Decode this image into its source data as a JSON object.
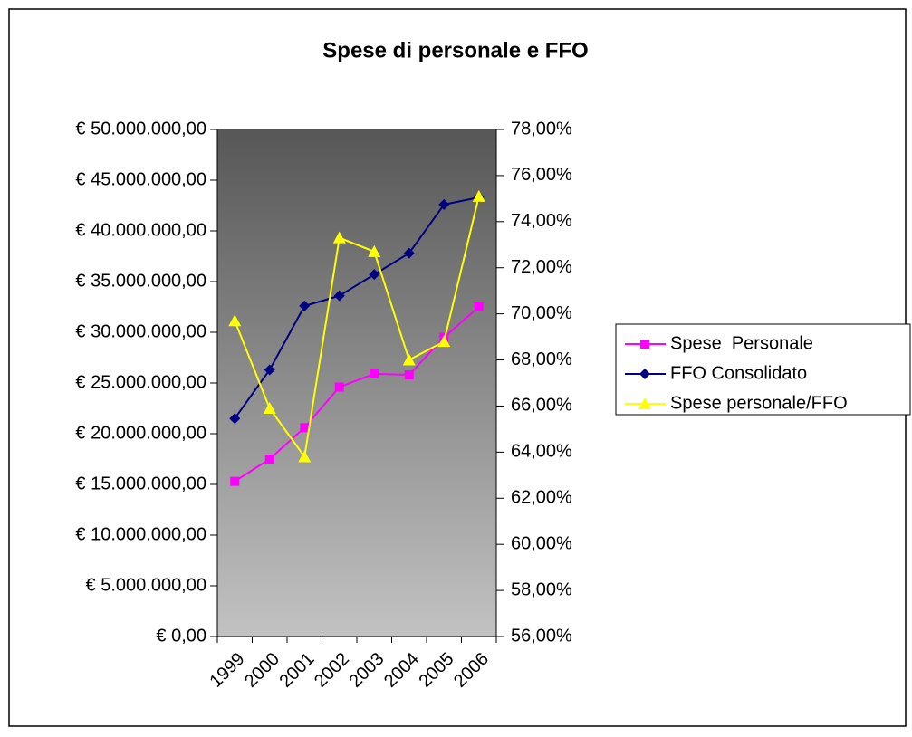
{
  "chart_data": {
    "type": "line",
    "title": "Spese di personale e FFO",
    "categories": [
      "1999",
      "2000",
      "2001",
      "2002",
      "2003",
      "2004",
      "2005",
      "2006"
    ],
    "series": [
      {
        "name": "Spese  Personale",
        "color": "#ff00ff",
        "marker": "square",
        "axis": "y",
        "values": [
          15300000,
          17500000,
          20600000,
          24600000,
          25900000,
          25800000,
          29500000,
          32500000
        ]
      },
      {
        "name": "FFO Consolidato",
        "color": "#000080",
        "marker": "diamond",
        "axis": "y",
        "values": [
          21500000,
          26300000,
          32600000,
          33600000,
          35700000,
          37800000,
          42600000,
          43300000
        ]
      },
      {
        "name": "Spese personale/FFO",
        "color": "#ffff00",
        "marker": "triangle",
        "axis": "y2",
        "values": [
          69.7,
          65.9,
          63.8,
          73.3,
          72.7,
          68.0,
          68.8,
          75.1
        ]
      }
    ],
    "ylim": [
      0,
      50000000
    ],
    "yticks": [
      {
        "value": 0,
        "label": "€ 0,00"
      },
      {
        "value": 5000000,
        "label": "€ 5.000.000,00"
      },
      {
        "value": 10000000,
        "label": "€ 10.000.000,00"
      },
      {
        "value": 15000000,
        "label": "€ 15.000.000,00"
      },
      {
        "value": 20000000,
        "label": "€ 20.000.000,00"
      },
      {
        "value": 25000000,
        "label": "€ 25.000.000,00"
      },
      {
        "value": 30000000,
        "label": "€ 30.000.000,00"
      },
      {
        "value": 35000000,
        "label": "€ 35.000.000,00"
      },
      {
        "value": 40000000,
        "label": "€ 40.000.000,00"
      },
      {
        "value": 45000000,
        "label": "€ 45.000.000,00"
      },
      {
        "value": 50000000,
        "label": "€ 50.000.000,00"
      }
    ],
    "y2lim": [
      56,
      78
    ],
    "y2ticks": [
      {
        "value": 56,
        "label": "56,00%"
      },
      {
        "value": 58,
        "label": "58,00%"
      },
      {
        "value": 60,
        "label": "60,00%"
      },
      {
        "value": 62,
        "label": "62,00%"
      },
      {
        "value": 64,
        "label": "64,00%"
      },
      {
        "value": 66,
        "label": "66,00%"
      },
      {
        "value": 68,
        "label": "68,00%"
      },
      {
        "value": 70,
        "label": "70,00%"
      },
      {
        "value": 72,
        "label": "72,00%"
      },
      {
        "value": 74,
        "label": "74,00%"
      },
      {
        "value": 76,
        "label": "76,00%"
      },
      {
        "value": 78,
        "label": "78,00%"
      }
    ],
    "legend": "right"
  }
}
